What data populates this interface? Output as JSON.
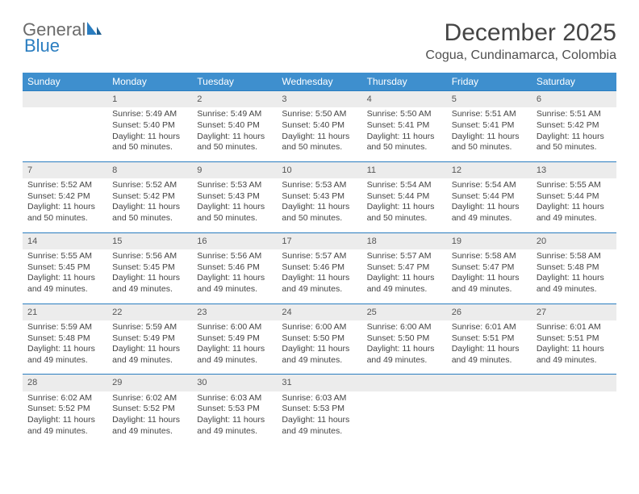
{
  "brand": {
    "part1": "General",
    "part2": "Blue"
  },
  "title": "December 2025",
  "location": "Cogua, Cundinamarca, Colombia",
  "colors": {
    "header_bg": "#3e8fce",
    "header_text": "#ffffff",
    "daynum_bg": "#ececec",
    "daynum_border": "#2a7dc0",
    "body_text": "#444444"
  },
  "weekdays": [
    "Sunday",
    "Monday",
    "Tuesday",
    "Wednesday",
    "Thursday",
    "Friday",
    "Saturday"
  ],
  "weeks": [
    [
      null,
      {
        "n": "1",
        "sr": "5:49 AM",
        "ss": "5:40 PM",
        "dl": "11 hours and 50 minutes."
      },
      {
        "n": "2",
        "sr": "5:49 AM",
        "ss": "5:40 PM",
        "dl": "11 hours and 50 minutes."
      },
      {
        "n": "3",
        "sr": "5:50 AM",
        "ss": "5:40 PM",
        "dl": "11 hours and 50 minutes."
      },
      {
        "n": "4",
        "sr": "5:50 AM",
        "ss": "5:41 PM",
        "dl": "11 hours and 50 minutes."
      },
      {
        "n": "5",
        "sr": "5:51 AM",
        "ss": "5:41 PM",
        "dl": "11 hours and 50 minutes."
      },
      {
        "n": "6",
        "sr": "5:51 AM",
        "ss": "5:42 PM",
        "dl": "11 hours and 50 minutes."
      }
    ],
    [
      {
        "n": "7",
        "sr": "5:52 AM",
        "ss": "5:42 PM",
        "dl": "11 hours and 50 minutes."
      },
      {
        "n": "8",
        "sr": "5:52 AM",
        "ss": "5:42 PM",
        "dl": "11 hours and 50 minutes."
      },
      {
        "n": "9",
        "sr": "5:53 AM",
        "ss": "5:43 PM",
        "dl": "11 hours and 50 minutes."
      },
      {
        "n": "10",
        "sr": "5:53 AM",
        "ss": "5:43 PM",
        "dl": "11 hours and 50 minutes."
      },
      {
        "n": "11",
        "sr": "5:54 AM",
        "ss": "5:44 PM",
        "dl": "11 hours and 50 minutes."
      },
      {
        "n": "12",
        "sr": "5:54 AM",
        "ss": "5:44 PM",
        "dl": "11 hours and 49 minutes."
      },
      {
        "n": "13",
        "sr": "5:55 AM",
        "ss": "5:44 PM",
        "dl": "11 hours and 49 minutes."
      }
    ],
    [
      {
        "n": "14",
        "sr": "5:55 AM",
        "ss": "5:45 PM",
        "dl": "11 hours and 49 minutes."
      },
      {
        "n": "15",
        "sr": "5:56 AM",
        "ss": "5:45 PM",
        "dl": "11 hours and 49 minutes."
      },
      {
        "n": "16",
        "sr": "5:56 AM",
        "ss": "5:46 PM",
        "dl": "11 hours and 49 minutes."
      },
      {
        "n": "17",
        "sr": "5:57 AM",
        "ss": "5:46 PM",
        "dl": "11 hours and 49 minutes."
      },
      {
        "n": "18",
        "sr": "5:57 AM",
        "ss": "5:47 PM",
        "dl": "11 hours and 49 minutes."
      },
      {
        "n": "19",
        "sr": "5:58 AM",
        "ss": "5:47 PM",
        "dl": "11 hours and 49 minutes."
      },
      {
        "n": "20",
        "sr": "5:58 AM",
        "ss": "5:48 PM",
        "dl": "11 hours and 49 minutes."
      }
    ],
    [
      {
        "n": "21",
        "sr": "5:59 AM",
        "ss": "5:48 PM",
        "dl": "11 hours and 49 minutes."
      },
      {
        "n": "22",
        "sr": "5:59 AM",
        "ss": "5:49 PM",
        "dl": "11 hours and 49 minutes."
      },
      {
        "n": "23",
        "sr": "6:00 AM",
        "ss": "5:49 PM",
        "dl": "11 hours and 49 minutes."
      },
      {
        "n": "24",
        "sr": "6:00 AM",
        "ss": "5:50 PM",
        "dl": "11 hours and 49 minutes."
      },
      {
        "n": "25",
        "sr": "6:00 AM",
        "ss": "5:50 PM",
        "dl": "11 hours and 49 minutes."
      },
      {
        "n": "26",
        "sr": "6:01 AM",
        "ss": "5:51 PM",
        "dl": "11 hours and 49 minutes."
      },
      {
        "n": "27",
        "sr": "6:01 AM",
        "ss": "5:51 PM",
        "dl": "11 hours and 49 minutes."
      }
    ],
    [
      {
        "n": "28",
        "sr": "6:02 AM",
        "ss": "5:52 PM",
        "dl": "11 hours and 49 minutes."
      },
      {
        "n": "29",
        "sr": "6:02 AM",
        "ss": "5:52 PM",
        "dl": "11 hours and 49 minutes."
      },
      {
        "n": "30",
        "sr": "6:03 AM",
        "ss": "5:53 PM",
        "dl": "11 hours and 49 minutes."
      },
      {
        "n": "31",
        "sr": "6:03 AM",
        "ss": "5:53 PM",
        "dl": "11 hours and 49 minutes."
      },
      null,
      null,
      null
    ]
  ],
  "labels": {
    "sunrise": "Sunrise: ",
    "sunset": "Sunset: ",
    "daylight": "Daylight: "
  }
}
